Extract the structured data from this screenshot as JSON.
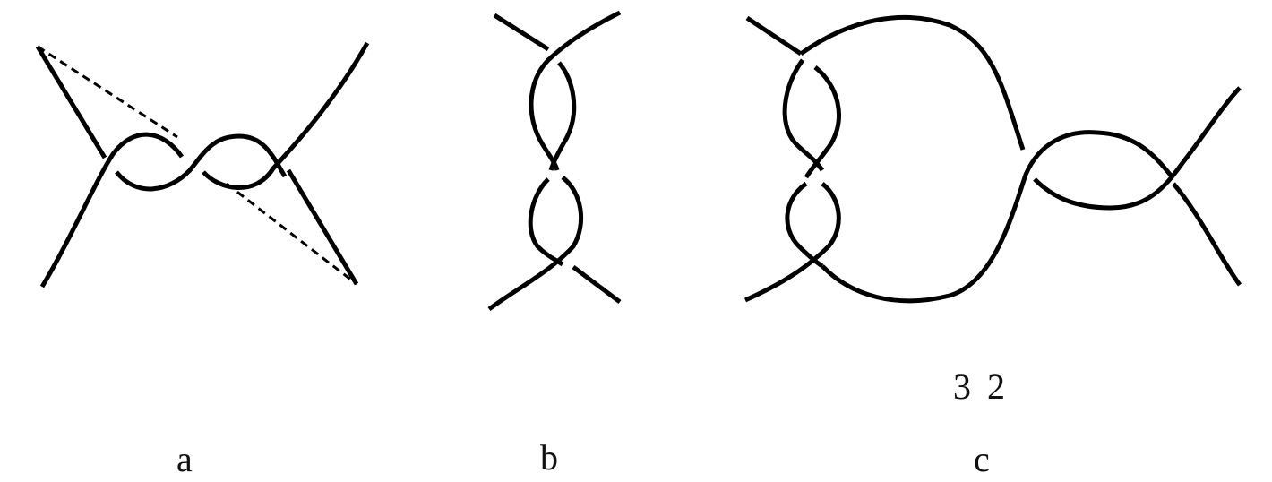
{
  "panels": [
    {
      "id": "a",
      "label": "a"
    },
    {
      "id": "b",
      "label": "b"
    },
    {
      "id": "c",
      "label": "c",
      "conway_notation": "3 2"
    }
  ]
}
